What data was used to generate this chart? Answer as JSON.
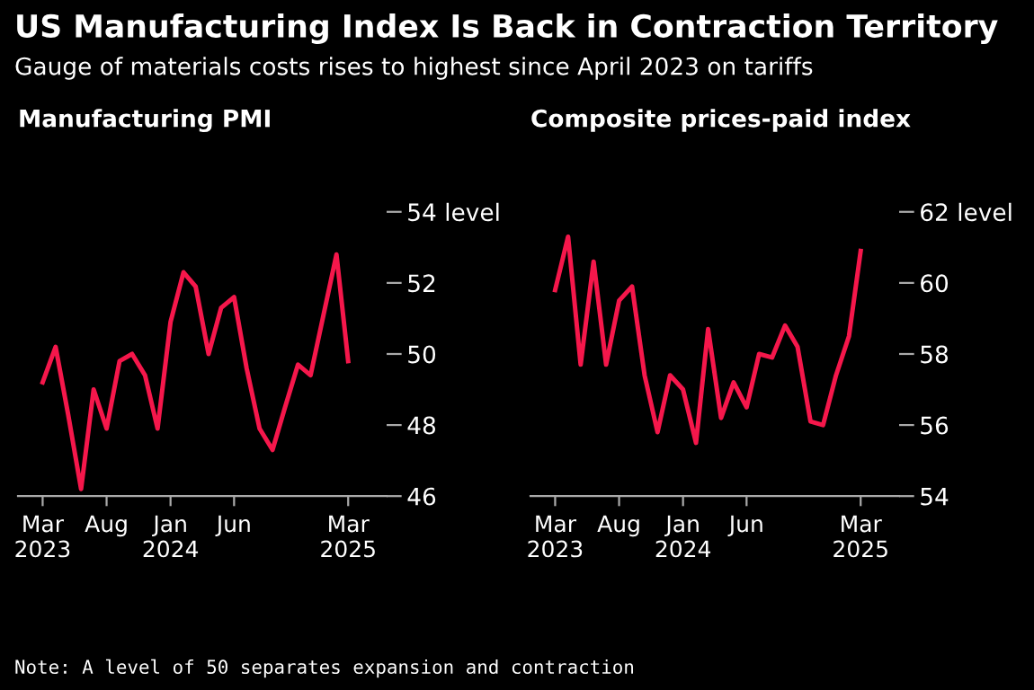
{
  "chart_data": [
    {
      "type": "other",
      "title": "US Manufacturing Index Is Back in Contraction Territory",
      "subtitle": "Gauge of materials costs rises to highest since April 2023 on tariffs",
      "annotations": [
        "Note: A level of 50 separates expansion and contraction"
      ]
    },
    {
      "type": "line",
      "title": "Manufacturing PMI",
      "x": [
        "2023-03",
        "2023-04",
        "2023-05",
        "2023-06",
        "2023-07",
        "2023-08",
        "2023-09",
        "2023-10",
        "2023-11",
        "2023-12",
        "2024-01",
        "2024-02",
        "2024-03",
        "2024-04",
        "2024-05",
        "2024-06",
        "2024-07",
        "2024-08",
        "2024-09",
        "2024-10",
        "2024-11",
        "2024-12",
        "2025-01",
        "2025-02",
        "2025-03"
      ],
      "series": [
        {
          "color": "#f5174b",
          "values": [
            49.2,
            50.2,
            48.3,
            46.2,
            49.0,
            47.9,
            49.8,
            50.0,
            49.4,
            47.9,
            50.9,
            52.3,
            51.9,
            50.0,
            51.3,
            51.6,
            49.6,
            47.9,
            47.3,
            48.5,
            49.7,
            49.4,
            51.1,
            52.8,
            49.8
          ]
        }
      ],
      "xlim": [
        "2023-01",
        "2025-06"
      ],
      "xticks": [
        {
          "value": "2023-03",
          "label": "Mar\n2023"
        },
        {
          "value": "2023-08",
          "label": "Aug"
        },
        {
          "value": "2024-01",
          "label": "Jan\n2024"
        },
        {
          "value": "2024-06",
          "label": "Jun"
        },
        {
          "value": "2025-03",
          "label": "Mar\n2025"
        }
      ],
      "ylim": [
        46,
        54
      ],
      "yticks": [
        46,
        48,
        50,
        52,
        {
          "value": 54,
          "label": "54 level"
        }
      ],
      "grid": false,
      "legend": false,
      "marker": "none",
      "line_style": "solid"
    },
    {
      "type": "line",
      "title": "Composite prices-paid index",
      "x": [
        "2023-03",
        "2023-04",
        "2023-05",
        "2023-06",
        "2023-07",
        "2023-08",
        "2023-09",
        "2023-10",
        "2023-11",
        "2023-12",
        "2024-01",
        "2024-02",
        "2024-03",
        "2024-04",
        "2024-05",
        "2024-06",
        "2024-07",
        "2024-08",
        "2024-09",
        "2024-10",
        "2024-11",
        "2024-12",
        "2025-01",
        "2025-02",
        "2025-03"
      ],
      "series": [
        {
          "color": "#f5174b",
          "values": [
            59.8,
            61.3,
            57.7,
            60.6,
            57.7,
            59.5,
            59.9,
            57.4,
            55.8,
            57.4,
            57.0,
            55.5,
            58.7,
            56.2,
            57.2,
            56.5,
            58.0,
            57.9,
            58.8,
            58.2,
            56.1,
            56.0,
            57.4,
            58.5,
            60.9
          ]
        }
      ],
      "xlim": [
        "2023-01",
        "2025-06"
      ],
      "xticks": [
        {
          "value": "2023-03",
          "label": "Mar\n2023"
        },
        {
          "value": "2023-08",
          "label": "Aug"
        },
        {
          "value": "2024-01",
          "label": "Jan\n2024"
        },
        {
          "value": "2024-06",
          "label": "Jun"
        },
        {
          "value": "2025-03",
          "label": "Mar\n2025"
        }
      ],
      "ylim": [
        54,
        62
      ],
      "yticks": [
        54,
        56,
        58,
        60,
        {
          "value": 62,
          "label": "62 level"
        }
      ],
      "grid": false,
      "legend": false,
      "marker": "none",
      "line_style": "solid"
    }
  ]
}
